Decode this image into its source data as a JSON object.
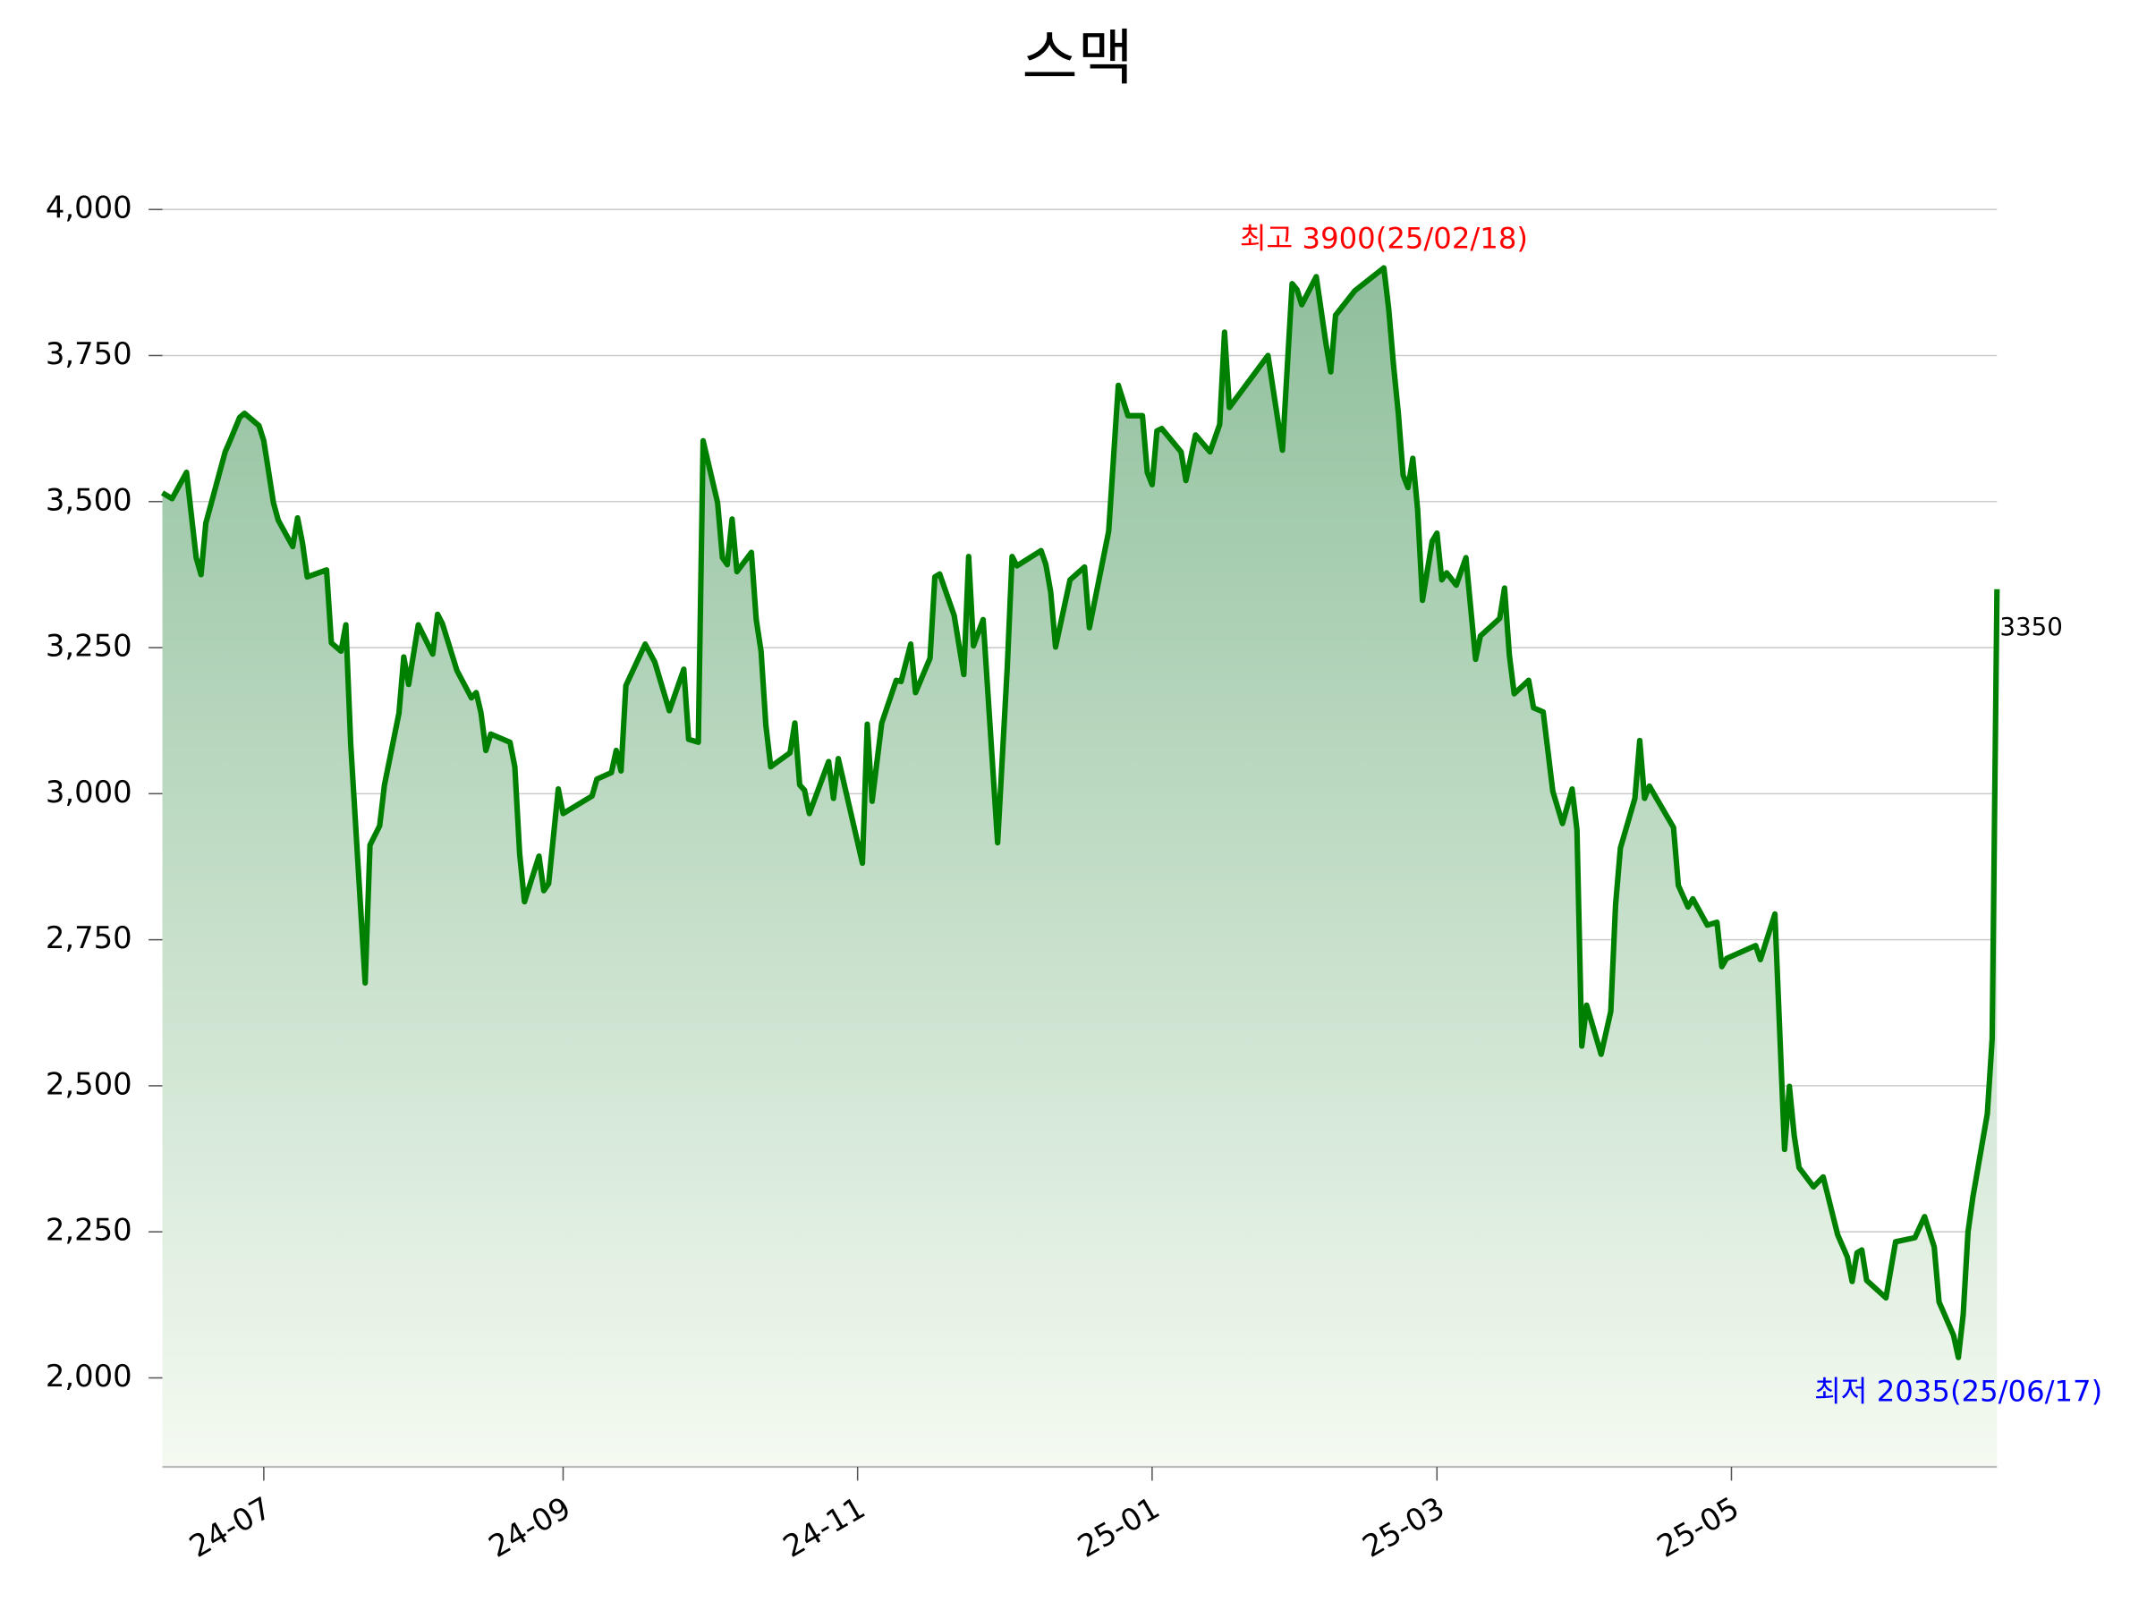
{
  "chart_data": {
    "type": "line",
    "title": "스맥",
    "x": [
      "2024-06-10",
      "2024-06-12",
      "2024-06-15",
      "2024-06-17",
      "2024-06-18",
      "2024-06-19",
      "2024-06-23",
      "2024-06-24",
      "2024-06-26",
      "2024-06-27",
      "2024-06-30",
      "2024-07-01",
      "2024-07-03",
      "2024-07-04",
      "2024-07-07",
      "2024-07-08",
      "2024-07-09",
      "2024-07-10",
      "2024-07-14",
      "2024-07-15",
      "2024-07-17",
      "2024-07-18",
      "2024-07-19",
      "2024-07-22",
      "2024-07-23",
      "2024-07-25",
      "2024-07-26",
      "2024-07-29",
      "2024-07-30",
      "2024-07-31",
      "2024-08-02",
      "2024-08-05",
      "2024-08-06",
      "2024-08-07",
      "2024-08-10",
      "2024-08-13",
      "2024-08-14",
      "2024-08-15",
      "2024-08-16",
      "2024-08-17",
      "2024-08-21",
      "2024-08-22",
      "2024-08-23",
      "2024-08-24",
      "2024-08-27",
      "2024-08-28",
      "2024-08-29",
      "2024-08-31",
      "2024-09-01",
      "2024-09-07",
      "2024-09-08",
      "2024-09-11",
      "2024-09-12",
      "2024-09-13",
      "2024-09-14",
      "2024-09-18",
      "2024-09-20",
      "2024-09-23",
      "2024-09-26",
      "2024-09-27",
      "2024-09-29",
      "2024-09-30",
      "2024-10-03",
      "2024-10-04",
      "2024-10-05",
      "2024-10-06",
      "2024-10-07",
      "2024-10-10",
      "2024-10-11",
      "2024-10-12",
      "2024-10-13",
      "2024-10-14",
      "2024-10-18",
      "2024-10-19",
      "2024-10-20",
      "2024-10-21",
      "2024-10-22",
      "2024-10-26",
      "2024-10-27",
      "2024-10-28",
      "2024-11-02",
      "2024-11-03",
      "2024-11-04",
      "2024-11-06",
      "2024-11-09",
      "2024-11-10",
      "2024-11-12",
      "2024-11-13",
      "2024-11-16",
      "2024-11-17",
      "2024-11-18",
      "2024-11-21",
      "2024-11-23",
      "2024-11-24",
      "2024-11-25",
      "2024-11-27",
      "2024-11-30",
      "2024-12-02",
      "2024-12-03",
      "2024-12-04",
      "2024-12-09",
      "2024-12-10",
      "2024-12-11",
      "2024-12-12",
      "2024-12-15",
      "2024-12-18",
      "2024-12-19",
      "2024-12-23",
      "2024-12-25",
      "2024-12-27",
      "2024-12-30",
      "2024-12-31",
      "2025-01-01",
      "2025-01-02",
      "2025-01-03",
      "2025-01-07",
      "2025-01-08",
      "2025-01-10",
      "2025-01-13",
      "2025-01-15",
      "2025-01-16",
      "2025-01-17",
      "2025-01-25",
      "2025-01-28",
      "2025-01-30",
      "2025-01-31",
      "2025-02-01",
      "2025-02-04",
      "2025-02-06",
      "2025-02-07",
      "2025-02-08",
      "2025-02-12",
      "2025-02-18",
      "2025-02-19",
      "2025-02-20",
      "2025-02-21",
      "2025-02-22",
      "2025-02-23",
      "2025-02-24",
      "2025-02-25",
      "2025-02-26",
      "2025-02-28",
      "2025-03-01",
      "2025-03-02",
      "2025-03-03",
      "2025-03-05",
      "2025-03-07",
      "2025-03-09",
      "2025-03-10",
      "2025-03-14",
      "2025-03-15",
      "2025-03-16",
      "2025-03-17",
      "2025-03-20",
      "2025-03-21",
      "2025-03-23",
      "2025-03-25",
      "2025-03-27",
      "2025-03-29",
      "2025-03-30",
      "2025-03-31",
      "2025-04-01",
      "2025-04-04",
      "2025-04-06",
      "2025-04-07",
      "2025-04-08",
      "2025-04-11",
      "2025-04-12",
      "2025-04-13",
      "2025-04-14",
      "2025-04-19",
      "2025-04-20",
      "2025-04-22",
      "2025-04-23",
      "2025-04-26",
      "2025-04-28",
      "2025-04-29",
      "2025-04-30",
      "2025-05-06",
      "2025-05-07",
      "2025-05-10",
      "2025-05-12",
      "2025-05-13",
      "2025-05-14",
      "2025-05-15",
      "2025-05-18",
      "2025-05-20",
      "2025-05-22",
      "2025-05-23",
      "2025-05-25",
      "2025-05-26",
      "2025-05-27",
      "2025-05-28",
      "2025-05-29",
      "2025-06-02",
      "2025-06-04",
      "2025-06-08",
      "2025-06-10",
      "2025-06-12",
      "2025-06-13",
      "2025-06-16",
      "2025-06-17",
      "2025-06-18",
      "2025-06-19",
      "2025-06-20",
      "2025-06-23",
      "2025-06-24",
      "2025-06-25"
    ],
    "series": [
      {
        "color": "#008000",
        "area_gradient": [
          "#8fbf9c",
          "#f4faf1"
        ],
        "values": [
          3515,
          3505,
          3550,
          3404,
          3375,
          3463,
          3585,
          3604,
          3644,
          3651,
          3630,
          3604,
          3498,
          3468,
          3423,
          3472,
          3430,
          3371,
          3383,
          3258,
          3244,
          3289,
          3086,
          2676,
          2912,
          2945,
          3015,
          3138,
          3234,
          3187,
          3289,
          3239,
          3307,
          3291,
          3211,
          3164,
          3173,
          3138,
          3074,
          3102,
          3088,
          3046,
          2897,
          2815,
          2893,
          2834,
          2846,
          3008,
          2966,
          2996,
          3025,
          3036,
          3074,
          3039,
          3185,
          3256,
          3225,
          3142,
          3213,
          3093,
          3088,
          3604,
          3498,
          3404,
          3392,
          3470,
          3380,
          3413,
          3298,
          3244,
          3117,
          3046,
          3070,
          3121,
          3015,
          3006,
          2966,
          3055,
          2992,
          3060,
          2881,
          3119,
          2987,
          3121,
          3194,
          3192,
          3256,
          3173,
          3232,
          3371,
          3376,
          3305,
          3204,
          3406,
          3253,
          3298,
          2916,
          3216,
          3406,
          3390,
          3416,
          3392,
          3345,
          3251,
          3366,
          3388,
          3284,
          3449,
          3699,
          3647,
          3647,
          3550,
          3529,
          3621,
          3625,
          3585,
          3536,
          3614,
          3585,
          3632,
          3790,
          3661,
          3750,
          3588,
          3873,
          3863,
          3837,
          3885,
          3771,
          3722,
          3819,
          3861,
          3900,
          3830,
          3734,
          3651,
          3545,
          3524,
          3574,
          3486,
          3331,
          3432,
          3446,
          3366,
          3378,
          3357,
          3404,
          3230,
          3270,
          3300,
          3352,
          3237,
          3171,
          3194,
          3147,
          3140,
          3004,
          2949,
          3008,
          2938,
          2568,
          2638,
          2554,
          2627,
          2810,
          2907,
          2992,
          3091,
          2992,
          3013,
          2942,
          2843,
          2806,
          2820,
          2775,
          2780,
          2704,
          2718,
          2740,
          2716,
          2794,
          2391,
          2499,
          2415,
          2360,
          2327,
          2344,
          2278,
          2245,
          2207,
          2165,
          2214,
          2219,
          2167,
          2137,
          2233,
          2240,
          2276,
          2224,
          2130,
          2073,
          2035,
          2108,
          2250,
          2309,
          2452,
          2580,
          3350
        ]
      }
    ],
    "xlim": [
      "2024-06-10",
      "2025-06-25"
    ],
    "xticks": [
      {
        "value": "2024-07-01",
        "label": "24-07"
      },
      {
        "value": "2024-09-01",
        "label": "24-09"
      },
      {
        "value": "2024-11-01",
        "label": "24-11"
      },
      {
        "value": "2025-01-01",
        "label": "25-01"
      },
      {
        "value": "2025-03-01",
        "label": "25-03"
      },
      {
        "value": "2025-05-01",
        "label": "25-05"
      }
    ],
    "ylim": [
      1850,
      4050
    ],
    "yticks": [
      {
        "value": 2000,
        "label": "2,000"
      },
      {
        "value": 2250,
        "label": "2,250"
      },
      {
        "value": 2500,
        "label": "2,500"
      },
      {
        "value": 2750,
        "label": "2,750"
      },
      {
        "value": 3000,
        "label": "3,000"
      },
      {
        "value": 3250,
        "label": "3,250"
      },
      {
        "value": 3500,
        "label": "3,500"
      },
      {
        "value": 3750,
        "label": "3,750"
      },
      {
        "value": 4000,
        "label": "4,000"
      }
    ],
    "grid": true,
    "annotations": [
      {
        "text": "최고 3900(25/02/18)",
        "x": "2025-02-18",
        "y": 3900,
        "color": "#ff0000",
        "position": "above"
      },
      {
        "text": "최저 2035(25/06/17)",
        "x": "2025-06-17",
        "y": 2035,
        "color": "#0000ff",
        "position": "below"
      }
    ]
  }
}
